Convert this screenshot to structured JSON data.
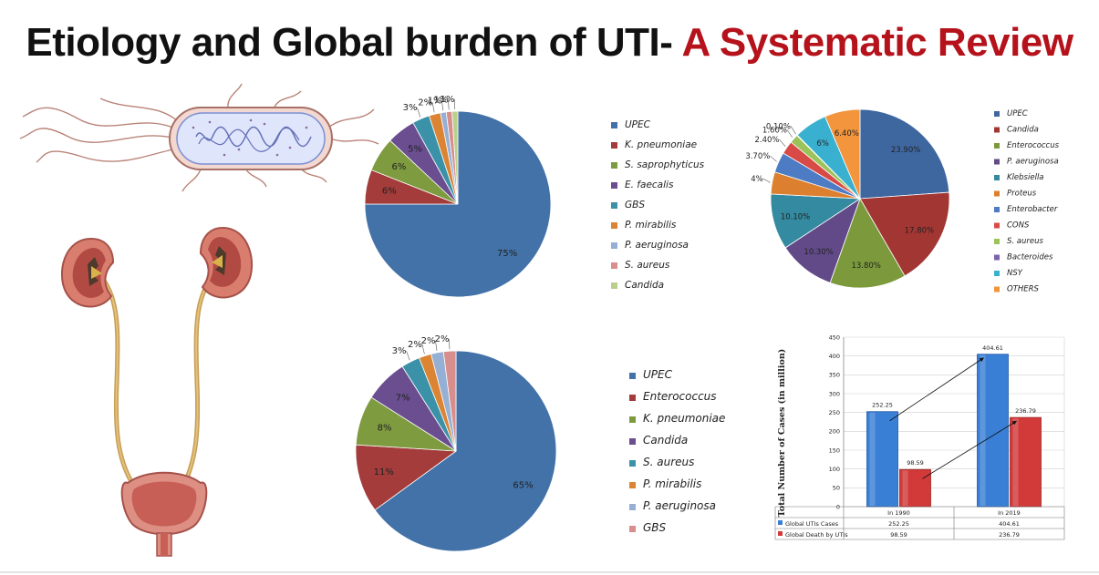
{
  "title": {
    "part1": "Etiology and Global burden of UTI- ",
    "part2": "A Systematic Review"
  },
  "colors": {
    "title_dark": "#111111",
    "title_accent": "#b5121b"
  },
  "illustrations": {
    "bacterium": "bacterium-illustration",
    "urinary_system": "kidney-ureter-bladder-illustration"
  },
  "chart_data": [
    {
      "type": "pie",
      "legend_position": "right",
      "labels": [
        "UPEC",
        "K. pneumoniae",
        "S. saprophyticus",
        "E. faecalis",
        "GBS",
        "P. mirabilis",
        "P. aeruginosa",
        "S. aureus",
        "Candida"
      ],
      "values": [
        75,
        6,
        6,
        5,
        3,
        2,
        1,
        1,
        1
      ],
      "value_labels": [
        "75%",
        "6%",
        "6%",
        "5%",
        "3%",
        "2%",
        "1%",
        "1%",
        "1%"
      ],
      "colors": [
        "#4372a8",
        "#a33c3a",
        "#7e9b40",
        "#6a4e8f",
        "#3b92a8",
        "#db8434",
        "#96afd4",
        "#d88e8c",
        "#b9d08c"
      ]
    },
    {
      "type": "pie",
      "legend_position": "right",
      "labels": [
        "UPEC",
        "Candida",
        "Enterococcus",
        "P. aeruginosa",
        "Klebsiella",
        "Proteus",
        "Enterobacter",
        "CONS",
        "S. aureus",
        "Bacteroides",
        "NSY",
        "OTHERS"
      ],
      "values": [
        23.9,
        17.8,
        13.8,
        10.3,
        10.1,
        4,
        3.7,
        2.4,
        1.6,
        0.1,
        6,
        6.4
      ],
      "value_labels": [
        "23.90%",
        "17.80%",
        "13.80%",
        "10.30%",
        "10.10%",
        "4%",
        "3.70%",
        "2.40%",
        "1.60%",
        "0.10%",
        "6%",
        "6.40%"
      ],
      "colors": [
        "#3e67a0",
        "#a23633",
        "#7c9a3c",
        "#624a88",
        "#348aa0",
        "#dc7f2e",
        "#4d7bc4",
        "#d84a45",
        "#9cc35a",
        "#7c62b0",
        "#3ab0d0",
        "#f2953c"
      ]
    },
    {
      "type": "pie",
      "legend_position": "right",
      "labels": [
        "UPEC",
        "Enterococcus",
        "K. pneumoniae",
        "Candida",
        "S. aureus",
        "P. mirabilis",
        "P. aeruginosa",
        "GBS"
      ],
      "values": [
        65,
        11,
        8,
        7,
        3,
        2,
        2,
        2
      ],
      "value_labels": [
        "65%",
        "11%",
        "8%",
        "7%",
        "3%",
        "2%",
        "2%",
        "2%"
      ],
      "colors": [
        "#4372a8",
        "#a33c3a",
        "#7e9b40",
        "#6a4e8f",
        "#3b92a8",
        "#db8434",
        "#96afd4",
        "#d88e8c"
      ]
    },
    {
      "type": "bar",
      "categories": [
        "In 1990",
        "In 2019"
      ],
      "series": [
        {
          "name": "Global UTIs Cases",
          "values": [
            252.25,
            404.61
          ],
          "value_labels": [
            "252.25",
            "404.61"
          ],
          "color": "#3a7fd6"
        },
        {
          "name": "Global Death by UTIs",
          "values": [
            98.59,
            236.79
          ],
          "value_labels": [
            "98.59",
            "236.79"
          ],
          "color": "#d23a3a"
        }
      ],
      "ylabel": "Total Number of Cases (in million)",
      "ylim": [
        0,
        450
      ],
      "yticks": [
        "0",
        "50",
        "100",
        "150",
        "200",
        "250",
        "300",
        "350",
        "400",
        "450"
      ],
      "grid": true,
      "data_table": true
    }
  ]
}
